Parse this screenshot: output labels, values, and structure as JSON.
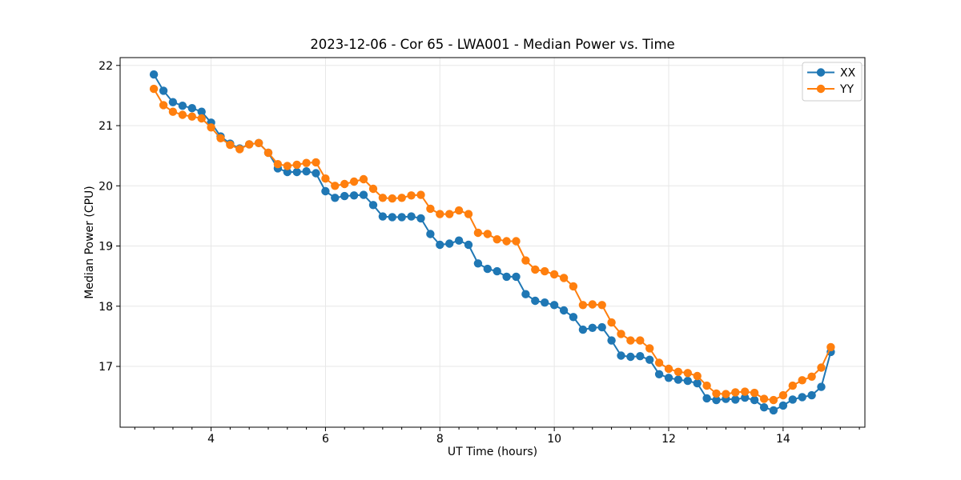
{
  "chart_data": {
    "type": "line",
    "title": "2023-12-06 - Cor 65 - LWA001 - Median Power vs. Time",
    "xlabel": "UT Time (hours)",
    "ylabel": "Median Power (CPU)",
    "xlim": [
      2.41,
      15.43
    ],
    "ylim": [
      15.99,
      22.13
    ],
    "xticks": [
      4,
      6,
      8,
      10,
      12,
      14
    ],
    "yticks": [
      17,
      18,
      19,
      20,
      21,
      22
    ],
    "x_minor_step_hours": 0.33333,
    "grid": true,
    "grid_color": "#e7e7e7",
    "axes_edge_color": "#000000",
    "background_color": "#ffffff",
    "legend": {
      "position": "upper right",
      "border_color": "#cccccc",
      "labels": [
        "XX",
        "YY"
      ]
    },
    "x": [
      3,
      3.1667,
      3.3333,
      3.5,
      3.6667,
      3.8333,
      4,
      4.1667,
      4.3333,
      4.5,
      4.6667,
      4.8333,
      5,
      5.1667,
      5.3333,
      5.5,
      5.6667,
      5.8333,
      6,
      6.1667,
      6.3333,
      6.5,
      6.6667,
      6.8333,
      7,
      7.1667,
      7.3333,
      7.5,
      7.6667,
      7.8333,
      8,
      8.1667,
      8.3333,
      8.5,
      8.6667,
      8.8333,
      9,
      9.1667,
      9.3333,
      9.5,
      9.6667,
      9.8333,
      10,
      10.1667,
      10.3333,
      10.5,
      10.6667,
      10.8333,
      11,
      11.1667,
      11.3333,
      11.5,
      11.6667,
      11.8333,
      12,
      12.1667,
      12.3333,
      12.5,
      12.6667,
      12.8333,
      13,
      13.1667,
      13.3333,
      13.5,
      13.6667,
      13.8333,
      14,
      14.1667,
      14.3333,
      14.5,
      14.6667,
      14.8333
    ],
    "series": [
      {
        "name": "XX",
        "color": "#1f77b4",
        "values": [
          21.85,
          21.58,
          21.39,
          21.33,
          21.29,
          21.23,
          21.05,
          20.82,
          20.7,
          20.62,
          20.69,
          20.71,
          20.55,
          20.29,
          20.23,
          20.23,
          20.24,
          20.21,
          19.91,
          19.8,
          19.83,
          19.84,
          19.85,
          19.68,
          19.49,
          19.48,
          19.48,
          19.49,
          19.46,
          19.2,
          19.02,
          19.04,
          19.09,
          19.02,
          18.71,
          18.62,
          18.58,
          18.49,
          18.49,
          18.2,
          18.09,
          18.06,
          18.02,
          17.93,
          17.82,
          17.61,
          17.64,
          17.65,
          17.43,
          17.18,
          17.16,
          17.17,
          17.11,
          16.87,
          16.81,
          16.78,
          16.76,
          16.72,
          16.47,
          16.44,
          16.46,
          16.45,
          16.48,
          16.44,
          16.32,
          16.27,
          16.35,
          16.45,
          16.49,
          16.52,
          16.66,
          17.24
        ]
      },
      {
        "name": "YY",
        "color": "#ff7f0e",
        "values": [
          21.61,
          21.34,
          21.23,
          21.18,
          21.15,
          21.12,
          20.97,
          20.79,
          20.68,
          20.61,
          20.69,
          20.71,
          20.55,
          20.36,
          20.33,
          20.35,
          20.38,
          20.39,
          20.12,
          20.0,
          20.03,
          20.07,
          20.11,
          19.95,
          19.8,
          19.79,
          19.8,
          19.84,
          19.85,
          19.62,
          19.53,
          19.53,
          19.59,
          19.53,
          19.22,
          19.2,
          19.11,
          19.08,
          19.08,
          18.76,
          18.61,
          18.58,
          18.53,
          18.47,
          18.33,
          18.02,
          18.03,
          18.02,
          17.73,
          17.54,
          17.43,
          17.43,
          17.3,
          17.06,
          16.96,
          16.91,
          16.89,
          16.84,
          16.68,
          16.55,
          16.54,
          16.57,
          16.58,
          16.56,
          16.46,
          16.44,
          16.52,
          16.68,
          16.77,
          16.83,
          16.98,
          17.32
        ]
      }
    ]
  }
}
